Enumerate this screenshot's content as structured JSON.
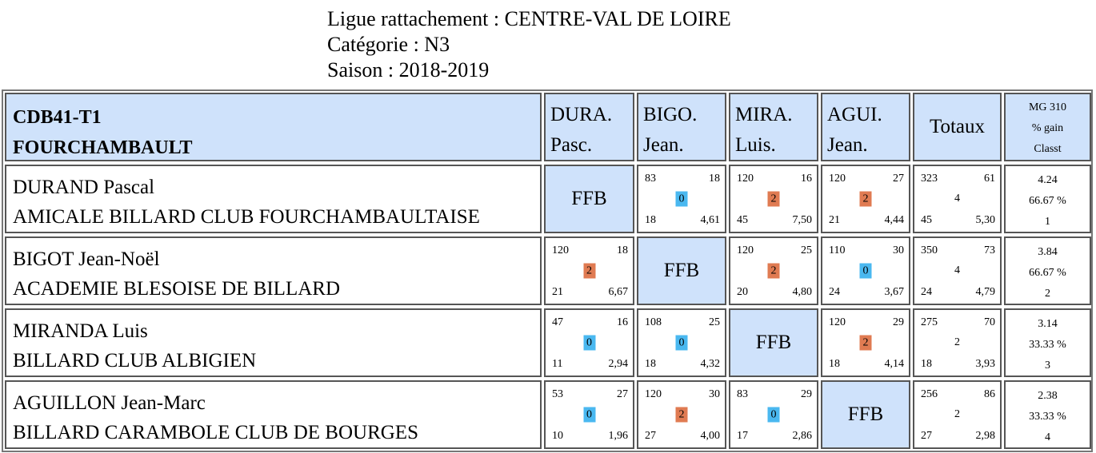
{
  "header": {
    "ligue": "Ligue rattachement : CENTRE-VAL DE LOIRE",
    "categorie": "Catégorie : N3",
    "saison": "Saison : 2018-2019"
  },
  "table": {
    "team_line1": "CDB41-T1",
    "team_line2": "FOURCHAMBAULT",
    "columns": [
      {
        "l1": "DURA.",
        "l2": "Pasc."
      },
      {
        "l1": "BIGO.",
        "l2": "Jean."
      },
      {
        "l1": "MIRA.",
        "l2": "Luis."
      },
      {
        "l1": "AGUI.",
        "l2": "Jean."
      }
    ],
    "totaux_label": "Totaux",
    "mg_line1": "MG 310",
    "mg_line2": "% gain",
    "mg_line3": "Classt",
    "self_label": "FFB",
    "colors": {
      "header_bg": "#cfe2fb",
      "win_badge": "#e07b52",
      "loss_badge": "#4ab8f0"
    },
    "rows": [
      {
        "name": "DURAND Pascal",
        "club": "AMICALE BILLARD CLUB FOURCHAMBAULTAISE",
        "cells": [
          null,
          {
            "tl": "83",
            "tr": "18",
            "pts": "0",
            "result": "loss",
            "bl": "18",
            "br": "4,61"
          },
          {
            "tl": "120",
            "tr": "16",
            "pts": "2",
            "result": "win",
            "bl": "45",
            "br": "7,50"
          },
          {
            "tl": "120",
            "tr": "27",
            "pts": "2",
            "result": "win",
            "bl": "21",
            "br": "4,44"
          }
        ],
        "total": {
          "tl": "323",
          "tr": "61",
          "mid": "4",
          "bl": "45",
          "br": "5,30"
        },
        "stats": {
          "mg": "4.24",
          "pct": "66.67 %",
          "rank": "1"
        }
      },
      {
        "name": "BIGOT Jean-Noël",
        "club": "ACADEMIE BLESOISE DE BILLARD",
        "cells": [
          {
            "tl": "120",
            "tr": "18",
            "pts": "2",
            "result": "win",
            "bl": "21",
            "br": "6,67"
          },
          null,
          {
            "tl": "120",
            "tr": "25",
            "pts": "2",
            "result": "win",
            "bl": "20",
            "br": "4,80"
          },
          {
            "tl": "110",
            "tr": "30",
            "pts": "0",
            "result": "loss",
            "bl": "24",
            "br": "3,67"
          }
        ],
        "total": {
          "tl": "350",
          "tr": "73",
          "mid": "4",
          "bl": "24",
          "br": "4,79"
        },
        "stats": {
          "mg": "3.84",
          "pct": "66.67 %",
          "rank": "2"
        }
      },
      {
        "name": "MIRANDA Luis",
        "club": "BILLARD CLUB ALBIGIEN",
        "cells": [
          {
            "tl": "47",
            "tr": "16",
            "pts": "0",
            "result": "loss",
            "bl": "11",
            "br": "2,94"
          },
          {
            "tl": "108",
            "tr": "25",
            "pts": "0",
            "result": "loss",
            "bl": "18",
            "br": "4,32"
          },
          null,
          {
            "tl": "120",
            "tr": "29",
            "pts": "2",
            "result": "win",
            "bl": "18",
            "br": "4,14"
          }
        ],
        "total": {
          "tl": "275",
          "tr": "70",
          "mid": "2",
          "bl": "18",
          "br": "3,93"
        },
        "stats": {
          "mg": "3.14",
          "pct": "33.33 %",
          "rank": "3"
        }
      },
      {
        "name": "AGUILLON Jean-Marc",
        "club": "BILLARD CARAMBOLE CLUB DE BOURGES",
        "cells": [
          {
            "tl": "53",
            "tr": "27",
            "pts": "0",
            "result": "loss",
            "bl": "10",
            "br": "1,96"
          },
          {
            "tl": "120",
            "tr": "30",
            "pts": "2",
            "result": "win",
            "bl": "27",
            "br": "4,00"
          },
          {
            "tl": "83",
            "tr": "29",
            "pts": "0",
            "result": "loss",
            "bl": "17",
            "br": "2,86"
          },
          null
        ],
        "total": {
          "tl": "256",
          "tr": "86",
          "mid": "2",
          "bl": "27",
          "br": "2,98"
        },
        "stats": {
          "mg": "2.38",
          "pct": "33.33 %",
          "rank": "4"
        }
      }
    ]
  }
}
